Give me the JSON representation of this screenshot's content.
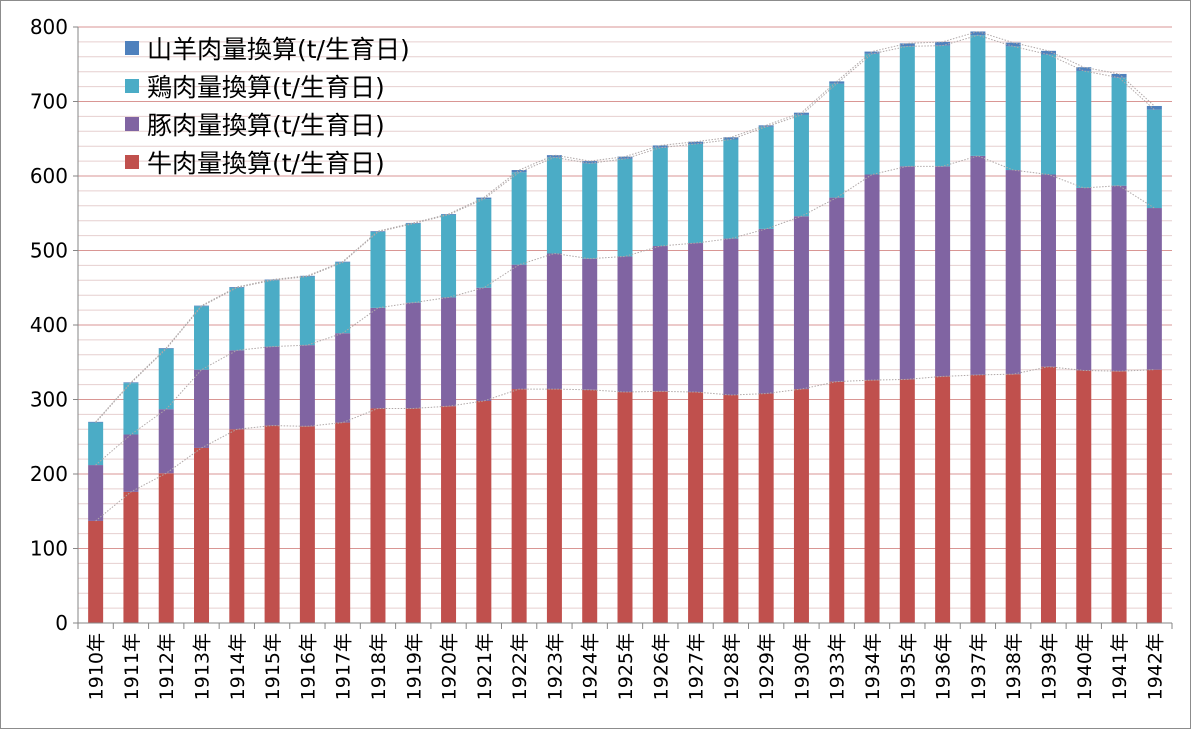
{
  "chart_data": {
    "type": "bar",
    "stacked": true,
    "title": "",
    "xlabel": "",
    "ylabel": "",
    "ylim": [
      0,
      800
    ],
    "yticks": [
      0,
      100,
      200,
      300,
      400,
      500,
      600,
      700,
      800
    ],
    "grid": true,
    "legend_position": "top-left",
    "categories": [
      "1910年",
      "1911年",
      "1912年",
      "1913年",
      "1914年",
      "1915年",
      "1916年",
      "1917年",
      "1918年",
      "1919年",
      "1920年",
      "1921年",
      "1922年",
      "1923年",
      "1924年",
      "1925年",
      "1926年",
      "1927年",
      "1928年",
      "1929年",
      "1930年",
      "1933年",
      "1934年",
      "1935年",
      "1936年",
      "1937年",
      "1938年",
      "1939年",
      "1940年",
      "1941年",
      "1942年"
    ],
    "series": [
      {
        "name": "牛肉量換算(t/生育日)",
        "color": "#c0504d",
        "values": [
          137,
          176,
          201,
          235,
          260,
          265,
          264,
          269,
          288,
          288,
          291,
          298,
          314,
          314,
          313,
          310,
          311,
          310,
          306,
          308,
          314,
          324,
          326,
          327,
          331,
          333,
          334,
          344,
          339,
          338,
          340
        ]
      },
      {
        "name": "豚肉量換算(t/生育日)",
        "color": "#8064a2",
        "values": [
          75,
          77,
          86,
          105,
          106,
          106,
          109,
          120,
          135,
          142,
          146,
          152,
          167,
          182,
          176,
          182,
          195,
          200,
          210,
          221,
          232,
          247,
          276,
          286,
          282,
          294,
          274,
          258,
          245,
          249,
          217
        ]
      },
      {
        "name": "鶏肉量換算(t/生育日)",
        "color": "#4bacc6",
        "values": [
          57,
          69,
          81,
          85,
          84,
          89,
          92,
          95,
          102,
          106,
          111,
          119,
          124,
          129,
          128,
          131,
          132,
          133,
          133,
          137,
          136,
          153,
          162,
          161,
          162,
          162,
          166,
          161,
          157,
          145,
          132
        ]
      },
      {
        "name": "山羊肉量換算(t/生育日)",
        "color": "#4f81bd",
        "values": [
          1,
          1,
          1,
          1,
          1,
          1,
          1,
          1,
          1,
          1,
          1,
          2,
          3,
          3,
          3,
          3,
          3,
          3,
          3,
          2,
          3,
          3,
          3,
          4,
          5,
          5,
          5,
          5,
          5,
          5,
          5
        ]
      }
    ]
  }
}
